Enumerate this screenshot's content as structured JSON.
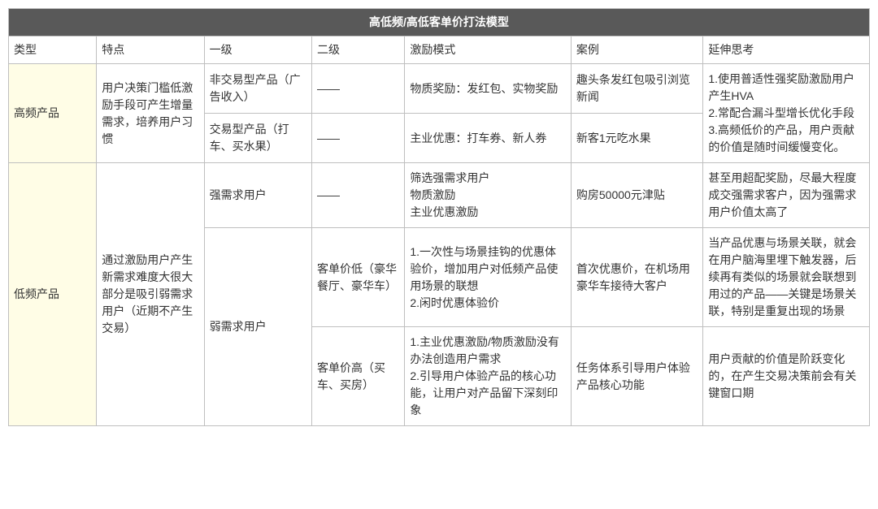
{
  "table": {
    "title": "高低频/高低客单价打法模型",
    "columns": [
      "类型",
      "特点",
      "一级",
      "二级",
      "激励模式",
      "案例",
      "延伸思考"
    ],
    "colors": {
      "title_bg": "#595959",
      "title_text": "#ffffff",
      "type_cell_bg": "#fffde6",
      "border": "#bfbfbf",
      "text": "#333333"
    },
    "r1": {
      "type": "高频产品",
      "feature": "用户决策门槛低激励手段可产生增量需求，培养用户习惯",
      "level1": "非交易型产品（广告收入）",
      "level2": "——",
      "mode": "物质奖励：发红包、实物奖励",
      "case": "趣头条发红包吸引浏览新闻",
      "think": "1.使用普适性强奖励激励用户产生HVA\n2.常配合漏斗型增长优化手段\n3.高频低价的产品，用户贡献的价值是随时间缓慢变化。"
    },
    "r2": {
      "level1": "交易型产品（打车、买水果）",
      "level2": "——",
      "mode": "主业优惠：打车券、新人券",
      "case": "新客1元吃水果"
    },
    "r3": {
      "type": "低频产品",
      "feature": "通过激励用户产生新需求难度大很大部分是吸引弱需求用户（近期不产生交易）",
      "level1": "强需求用户",
      "level2": "——",
      "mode": "筛选强需求用户\n物质激励\n主业优惠激励",
      "case": "购房50000元津贴",
      "think": "甚至用超配奖励，尽最大程度成交强需求客户，因为强需求用户价值太高了"
    },
    "r4": {
      "level1": "弱需求用户",
      "level2": "客单价低（豪华餐厅、豪华车）",
      "mode": "1.一次性与场景挂钩的优惠体验价，增加用户对低频产品使用场景的联想\n2.闲时优惠体验价",
      "case": "首次优惠价，在机场用豪华车接待大客户",
      "think": "当产品优惠与场景关联，就会在用户脑海里埋下触发器，后续再有类似的场景就会联想到用过的产品——关键是场景关联，特别是重复出现的场景"
    },
    "r5": {
      "level2": "客单价高（买车、买房）",
      "mode": "1.主业优惠激励/物质激励没有办法创造用户需求\n2.引导用户体验产品的核心功能，让用户对产品留下深刻印象",
      "case": "任务体系引导用户体验产品核心功能",
      "think": "用户贡献的价值是阶跃变化的，在产生交易决策前会有关键窗口期"
    }
  }
}
